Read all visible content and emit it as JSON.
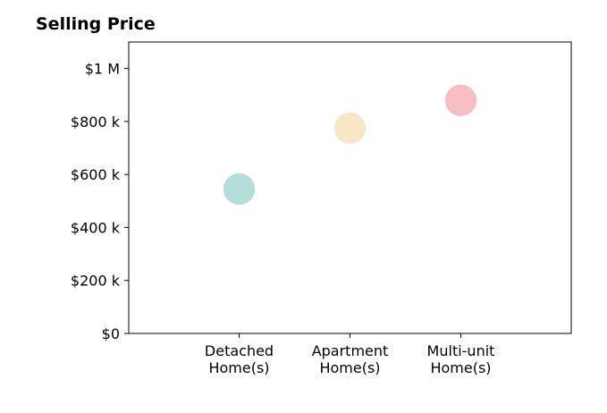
{
  "chart_data": {
    "type": "scatter",
    "title": "Selling Price",
    "xlabel": "",
    "ylabel": "",
    "categories": [
      "Detached\nHome(s)",
      "Apartment\nHome(s)",
      "Multi-unit\nHome(s)"
    ],
    "values": [
      545000,
      775000,
      880000
    ],
    "colors": [
      "#a8d8d3",
      "#f7e2bd",
      "#f6b3b9"
    ],
    "ylim": [
      0,
      1100000
    ],
    "yticks": [
      0,
      200000,
      400000,
      600000,
      800000,
      1000000
    ],
    "ytick_labels": [
      "$0",
      "$200 k",
      "$400 k",
      "$600 k",
      "$800 k",
      "$1 M"
    ],
    "grid": false,
    "legend": "none"
  }
}
